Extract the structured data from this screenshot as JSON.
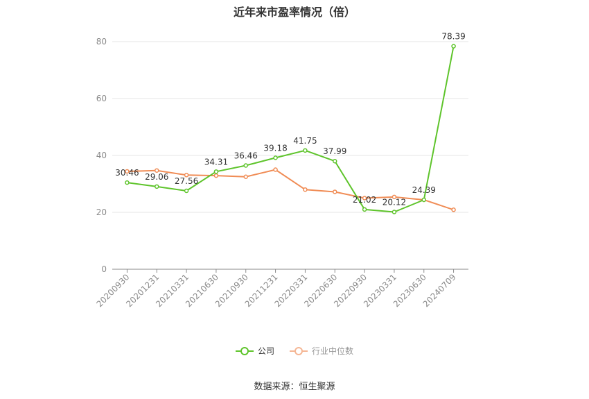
{
  "title": "近年来市盈率情况（倍）",
  "source": "数据来源：恒生聚源",
  "legend": [
    {
      "label": "公司",
      "color": "#5ec42b"
    },
    {
      "label": "行业中位数",
      "color": "#f08c55"
    }
  ],
  "chart_data": {
    "type": "line",
    "categories": [
      "20200930",
      "20201231",
      "20210331",
      "20210630",
      "20210930",
      "20211231",
      "20220331",
      "20220630",
      "20220930",
      "20230331",
      "20230630",
      "20240709"
    ],
    "series": [
      {
        "name": "公司",
        "color": "#5ec42b",
        "values": [
          30.46,
          29.06,
          27.56,
          34.31,
          36.46,
          39.18,
          41.75,
          37.99,
          21.02,
          20.12,
          24.39,
          78.39
        ],
        "labels": [
          "30.46",
          "29.06",
          "27.56",
          "34.31",
          "36.46",
          "39.18",
          "41.75",
          "37.99",
          "21.02",
          "20.12",
          "24.39",
          "78.39"
        ]
      },
      {
        "name": "行业中位数",
        "color": "#f08c55",
        "values": [
          34.4,
          34.7,
          33.1,
          32.9,
          32.5,
          35.0,
          28.0,
          27.2,
          25.0,
          25.4,
          24.4,
          20.9
        ]
      }
    ],
    "yticks": [
      0,
      20,
      40,
      60,
      80
    ],
    "ylim": [
      0,
      80
    ],
    "grid": true,
    "legend_position": "bottom"
  }
}
